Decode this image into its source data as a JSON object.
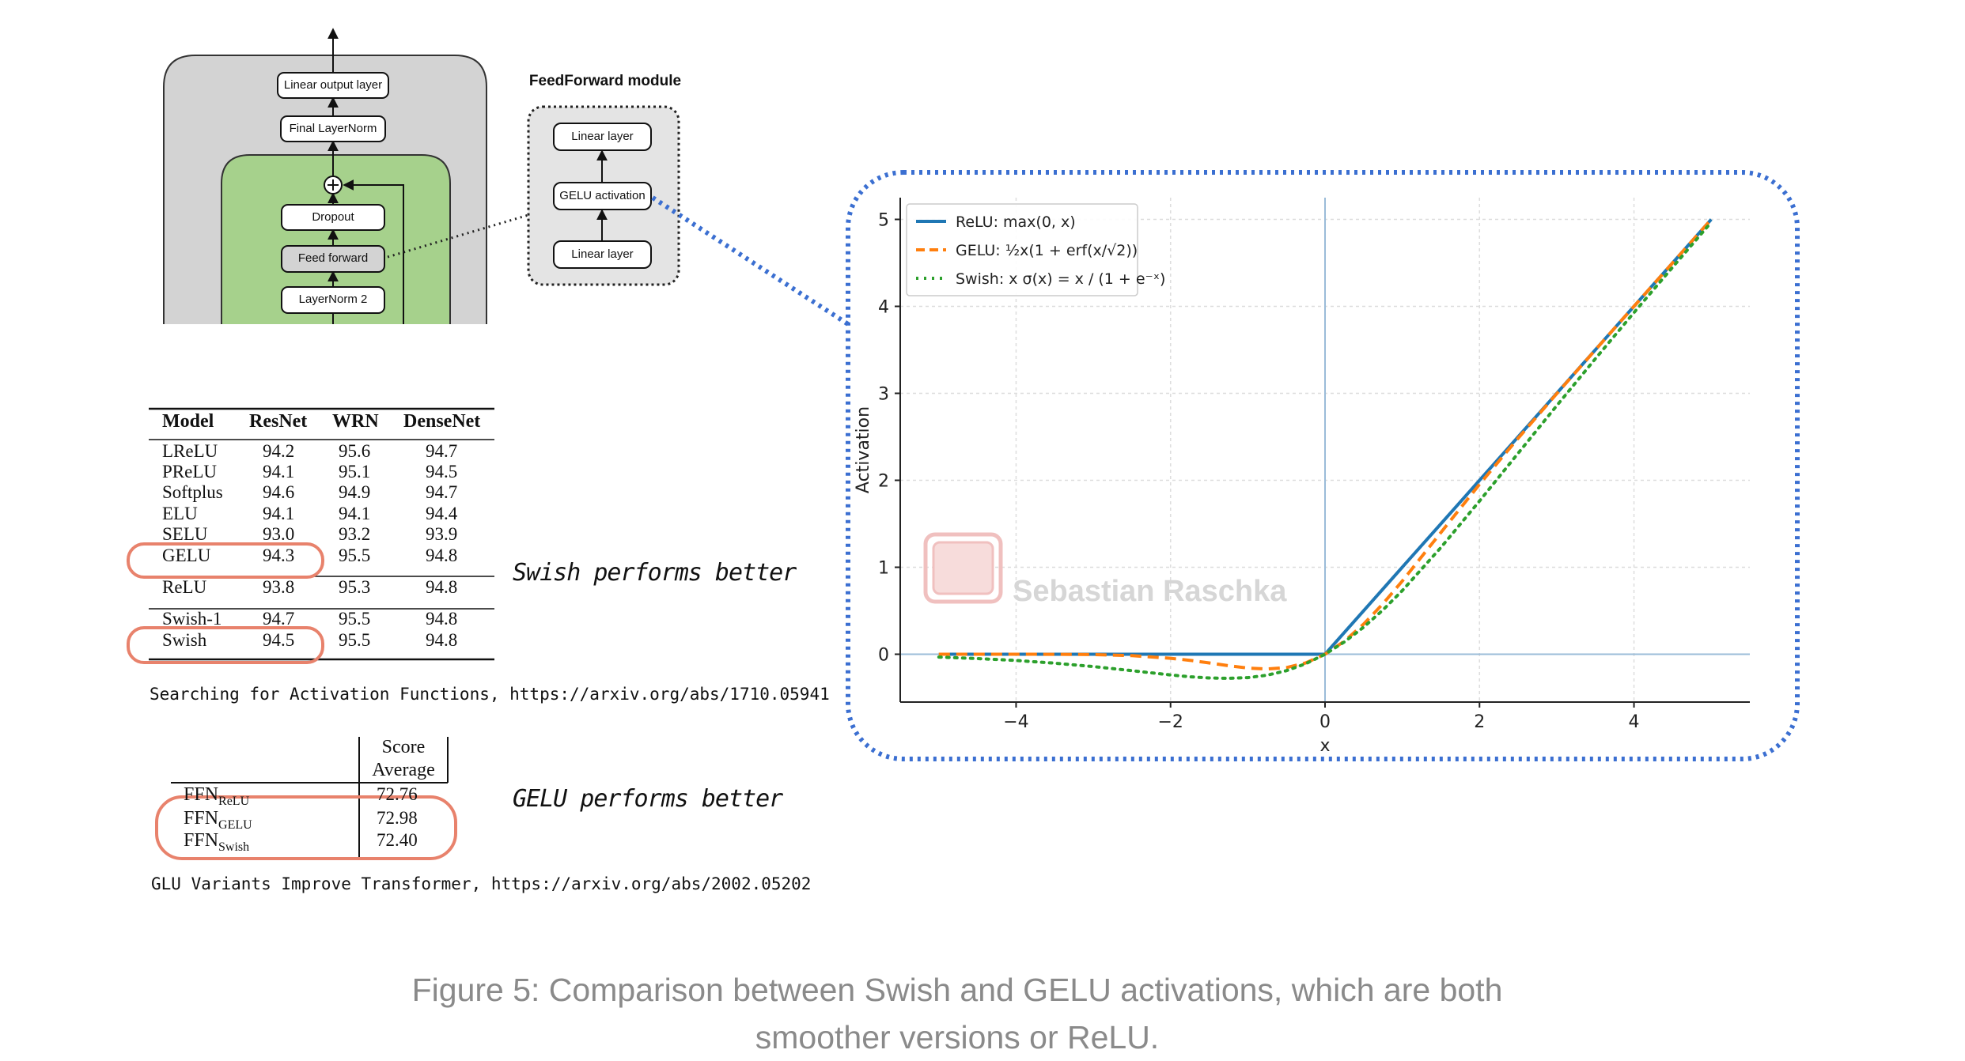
{
  "arch": {
    "output": "Linear output layer",
    "final_norm": "Final LayerNorm",
    "dropout": "Dropout",
    "feed_forward": "Feed forward",
    "layernorm2": "LayerNorm 2"
  },
  "ffn_module": {
    "title": "FeedForward module",
    "linear_top": "Linear layer",
    "gelu": "GELU activation",
    "linear_bottom": "Linear layer"
  },
  "table1": {
    "headers": [
      "Model",
      "ResNet",
      "WRN",
      "DenseNet"
    ],
    "rows": [
      [
        "LReLU",
        "94.2",
        "95.6",
        "94.7"
      ],
      [
        "PReLU",
        "94.1",
        "95.1",
        "94.5"
      ],
      [
        "Softplus",
        "94.6",
        "94.9",
        "94.7"
      ],
      [
        "ELU",
        "94.1",
        "94.1",
        "94.4"
      ],
      [
        "SELU",
        "93.0",
        "93.2",
        "93.9"
      ],
      [
        "GELU",
        "94.3",
        "95.5",
        "94.8"
      ],
      [
        "ReLU",
        "93.8",
        "95.3",
        "94.8"
      ],
      [
        "Swish-1",
        "94.7",
        "95.5",
        "94.8"
      ],
      [
        "Swish",
        "94.5",
        "95.5",
        "94.8"
      ]
    ],
    "note": "Swish performs better",
    "source": "Searching for Activation Functions, https://arxiv.org/abs/1710.05941"
  },
  "table2": {
    "header_line1": "Score",
    "header_line2": "Average",
    "rows": [
      {
        "name": "FFN",
        "sub": "ReLU",
        "value": "72.76"
      },
      {
        "name": "FFN",
        "sub": "GELU",
        "value": "72.98"
      },
      {
        "name": "FFN",
        "sub": "Swish",
        "value": "72.40"
      }
    ],
    "note": "GELU performs better",
    "source": "GLU Variants Improve Transformer, https://arxiv.org/abs/2002.05202"
  },
  "chart_data": {
    "type": "line",
    "xlabel": "x",
    "ylabel": "Activation",
    "xlim": [
      -5.5,
      5.5
    ],
    "ylim": [
      -0.55,
      5.25
    ],
    "xticks": [
      -4,
      -2,
      0,
      2,
      4
    ],
    "yticks": [
      0,
      1,
      2,
      3,
      4,
      5
    ],
    "grid": true,
    "legend_position": "top-left",
    "x": [
      -5,
      -4.5,
      -4,
      -3.5,
      -3,
      -2.5,
      -2,
      -1.75,
      -1.5,
      -1.25,
      -1,
      -0.75,
      -0.5,
      -0.25,
      0,
      0.25,
      0.5,
      0.75,
      1,
      1.5,
      2,
      2.5,
      3,
      3.5,
      4,
      4.5,
      5
    ],
    "series": [
      {
        "name": "ReLU: max(0, x)",
        "color": "#1f77b4",
        "style": "solid",
        "values": [
          0,
          0,
          0,
          0,
          0,
          0,
          0,
          0,
          0,
          0,
          0,
          0,
          0,
          0,
          0,
          0.25,
          0.5,
          0.75,
          1,
          1.5,
          2,
          2.5,
          3,
          3.5,
          4,
          4.5,
          5
        ]
      },
      {
        "name": "GELU: ½x(1 + erf(x/√2))",
        "color": "#ff7f0e",
        "style": "dashed",
        "values": [
          0,
          0,
          -0.0001,
          -0.0008,
          -0.004,
          -0.016,
          -0.046,
          -0.07,
          -0.1,
          -0.132,
          -0.159,
          -0.17,
          -0.154,
          -0.1,
          0,
          0.15,
          0.346,
          0.58,
          0.841,
          1.4,
          1.954,
          2.484,
          2.996,
          3.499,
          4,
          4.5,
          5
        ]
      },
      {
        "name": "Swish: x σ(x) = x / (1 + e⁻ˣ)",
        "color": "#2ca02c",
        "style": "dotted",
        "values": [
          -0.033,
          -0.05,
          -0.072,
          -0.103,
          -0.142,
          -0.189,
          -0.238,
          -0.259,
          -0.273,
          -0.277,
          -0.269,
          -0.241,
          -0.189,
          -0.109,
          0,
          0.141,
          0.311,
          0.509,
          0.731,
          1.227,
          1.762,
          2.311,
          2.858,
          3.397,
          3.928,
          4.45,
          4.967
        ]
      }
    ],
    "watermark": "Sebastian Raschka"
  },
  "caption": {
    "line1": "Figure 5: Comparison between Swish and GELU activations, which are both",
    "line2": "smoother versions or ReLU."
  },
  "colors": {
    "highlight": "#e8826c",
    "dotted_border": "#3b6fd1",
    "block_green": "#a6d18c",
    "block_gray": "#d3d3d3"
  }
}
